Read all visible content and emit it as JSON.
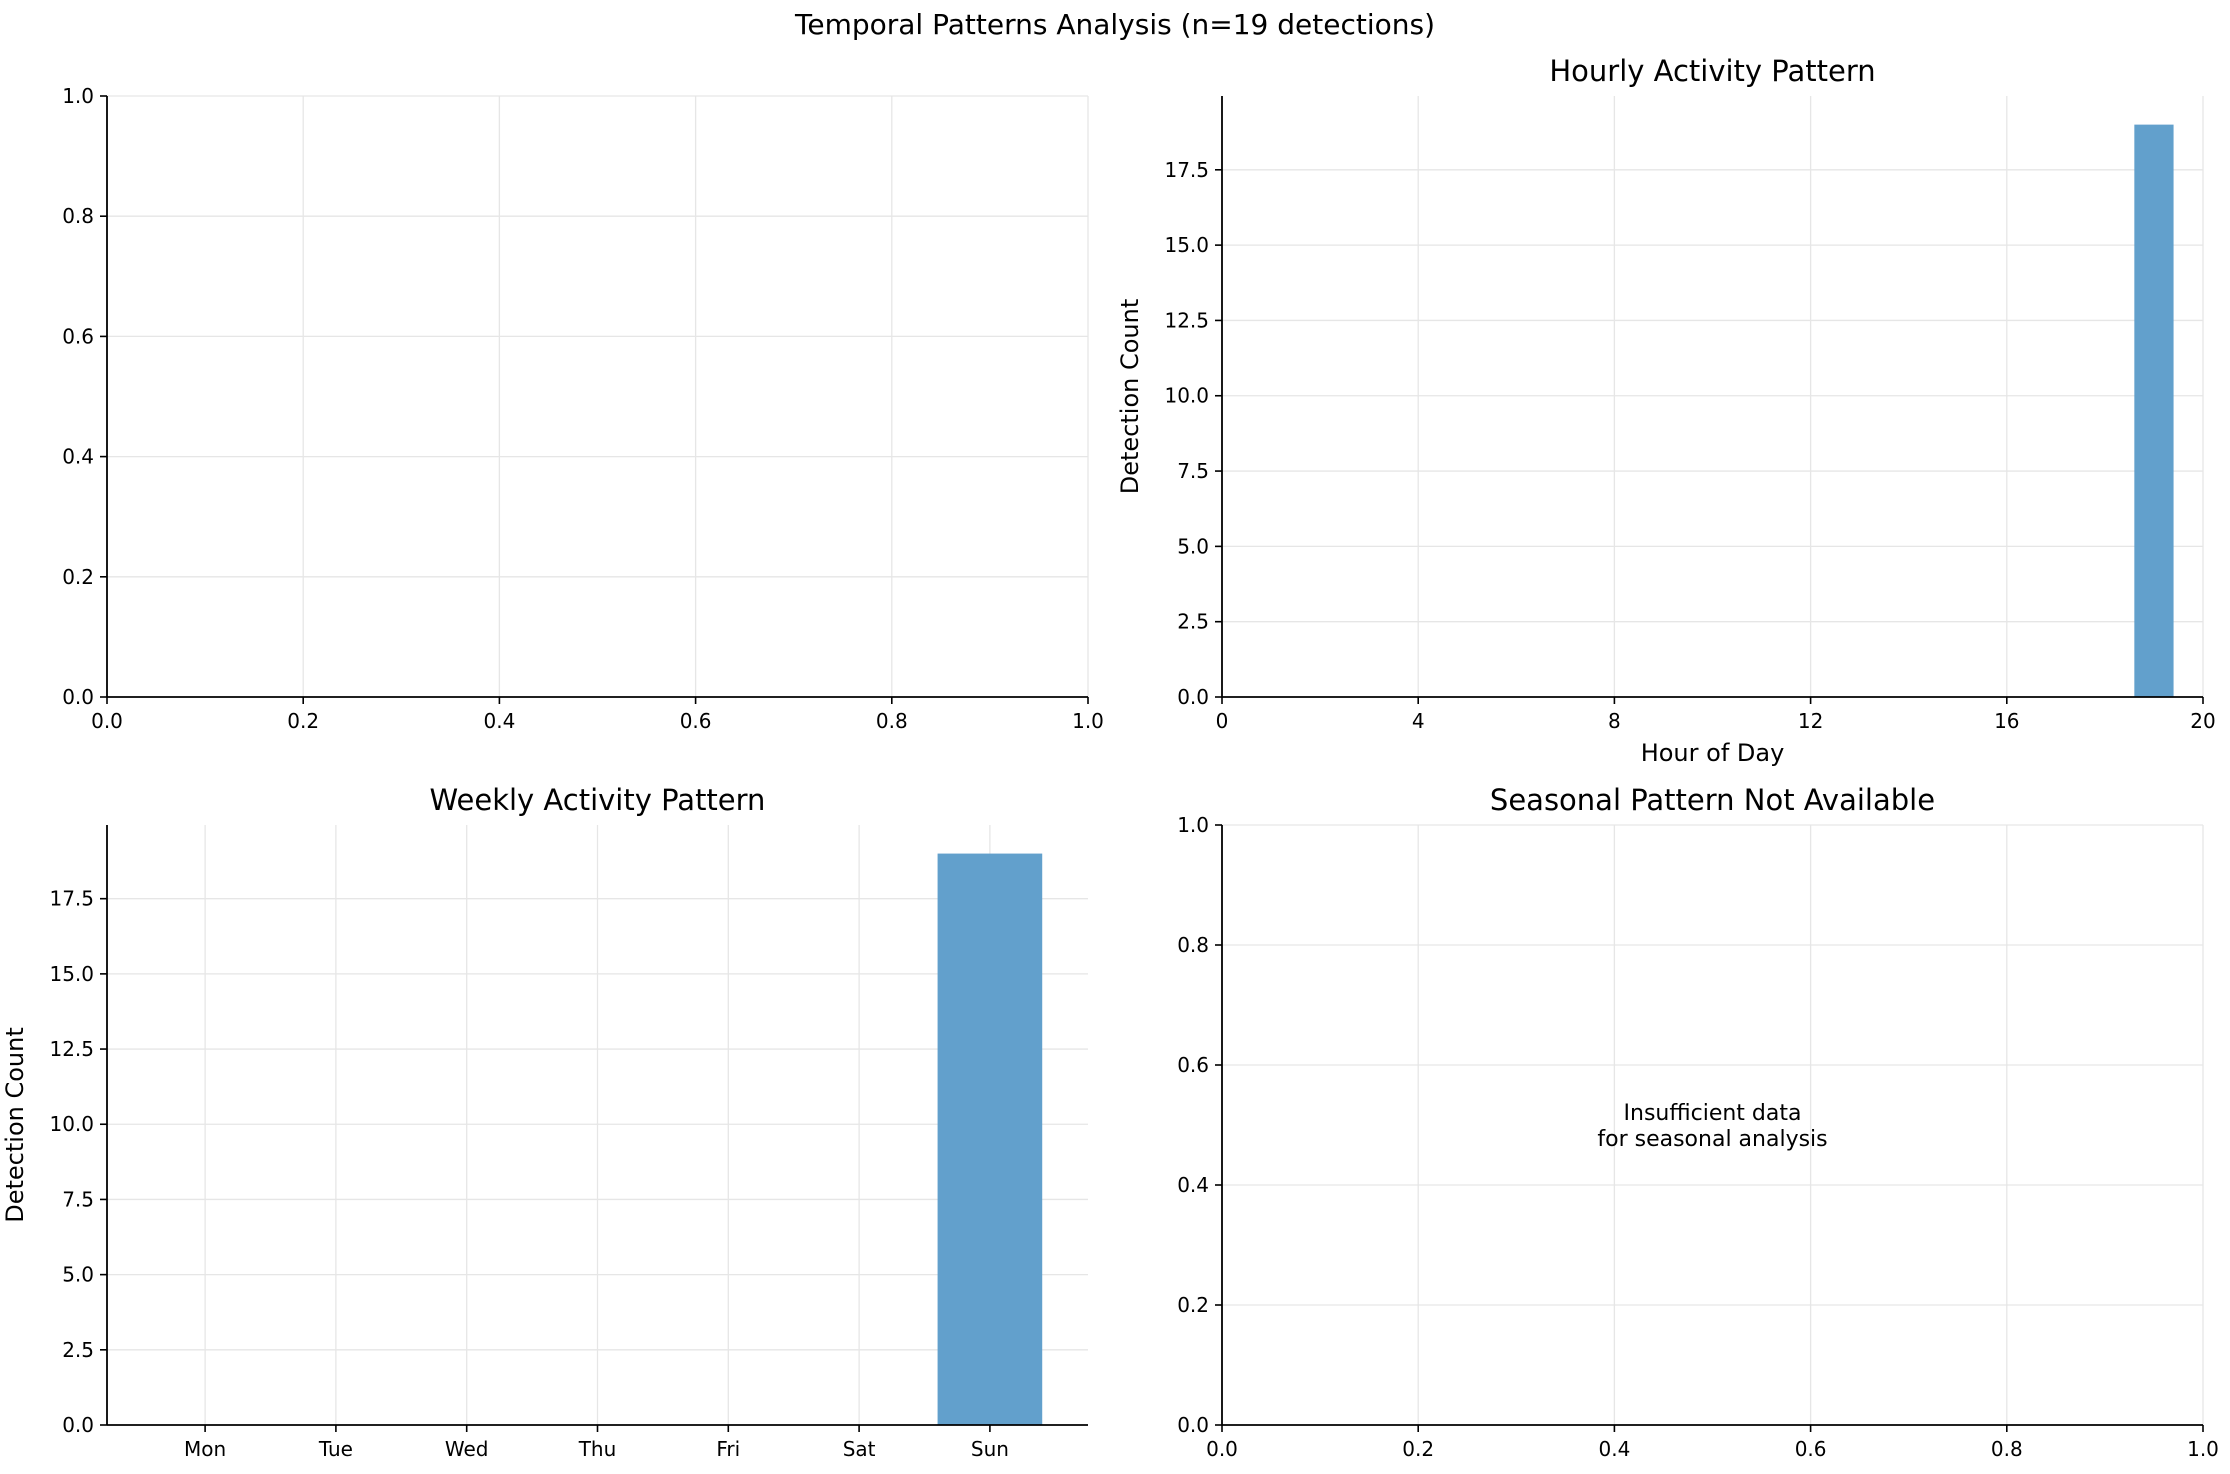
{
  "figure": {
    "suptitle": "Temporal Patterns Analysis (n=19 detections)"
  },
  "colors": {
    "bar": "#62a0cc",
    "grid": "#e6e6e6",
    "axis": "#000000"
  },
  "chart_data": [
    {
      "id": "empty-panel",
      "type": "scatter",
      "title": "",
      "xlabel": "",
      "ylabel": "",
      "xlim": [
        0,
        1
      ],
      "ylim": [
        0,
        1
      ],
      "xticks": [
        0,
        0.2,
        0.4,
        0.6,
        0.8,
        1.0
      ],
      "xtick_labels": [
        "0.0",
        "0.2",
        "0.4",
        "0.6",
        "0.8",
        "1.0"
      ],
      "yticks": [
        0,
        0.2,
        0.4,
        0.6,
        0.8,
        1.0
      ],
      "ytick_labels": [
        "0.0",
        "0.2",
        "0.4",
        "0.6",
        "0.8",
        "1.0"
      ],
      "grid": true,
      "series": []
    },
    {
      "id": "hourly",
      "type": "bar",
      "title": "Hourly Activity Pattern",
      "xlabel": "Hour of Day",
      "ylabel": "Detection Count",
      "xlim": [
        0,
        20
      ],
      "ylim": [
        0,
        19.95
      ],
      "xticks": [
        0,
        4,
        8,
        12,
        16,
        20
      ],
      "xtick_labels": [
        "0",
        "4",
        "8",
        "12",
        "16",
        "20"
      ],
      "yticks": [
        0,
        2.5,
        5,
        7.5,
        10,
        12.5,
        15,
        17.5
      ],
      "ytick_labels": [
        "0.0",
        "2.5",
        "5.0",
        "7.5",
        "10.0",
        "12.5",
        "15.0",
        "17.5"
      ],
      "grid": true,
      "bars": [
        {
          "x": 19,
          "value": 19
        }
      ]
    },
    {
      "id": "weekly",
      "type": "bar",
      "title": "Weekly Activity Pattern",
      "xlabel": "",
      "ylabel": "Detection Count",
      "categories": [
        "Mon",
        "Tue",
        "Wed",
        "Thu",
        "Fri",
        "Sat",
        "Sun"
      ],
      "values": [
        0,
        0,
        0,
        0,
        0,
        0,
        19
      ],
      "ylim": [
        0,
        19.95
      ],
      "yticks": [
        0,
        2.5,
        5,
        7.5,
        10,
        12.5,
        15,
        17.5
      ],
      "ytick_labels": [
        "0.0",
        "2.5",
        "5.0",
        "7.5",
        "10.0",
        "12.5",
        "15.0",
        "17.5"
      ],
      "grid": true
    },
    {
      "id": "seasonal",
      "type": "scatter",
      "title": "Seasonal Pattern Not Available",
      "xlabel": "",
      "ylabel": "",
      "xlim": [
        0,
        1
      ],
      "ylim": [
        0,
        1
      ],
      "xticks": [
        0,
        0.2,
        0.4,
        0.6,
        0.8,
        1.0
      ],
      "xtick_labels": [
        "0.0",
        "0.2",
        "0.4",
        "0.6",
        "0.8",
        "1.0"
      ],
      "yticks": [
        0,
        0.2,
        0.4,
        0.6,
        0.8,
        1.0
      ],
      "ytick_labels": [
        "0.0",
        "0.2",
        "0.4",
        "0.6",
        "0.8",
        "1.0"
      ],
      "grid": true,
      "annotation": [
        "Insufficient data",
        "for seasonal analysis"
      ],
      "series": []
    }
  ]
}
